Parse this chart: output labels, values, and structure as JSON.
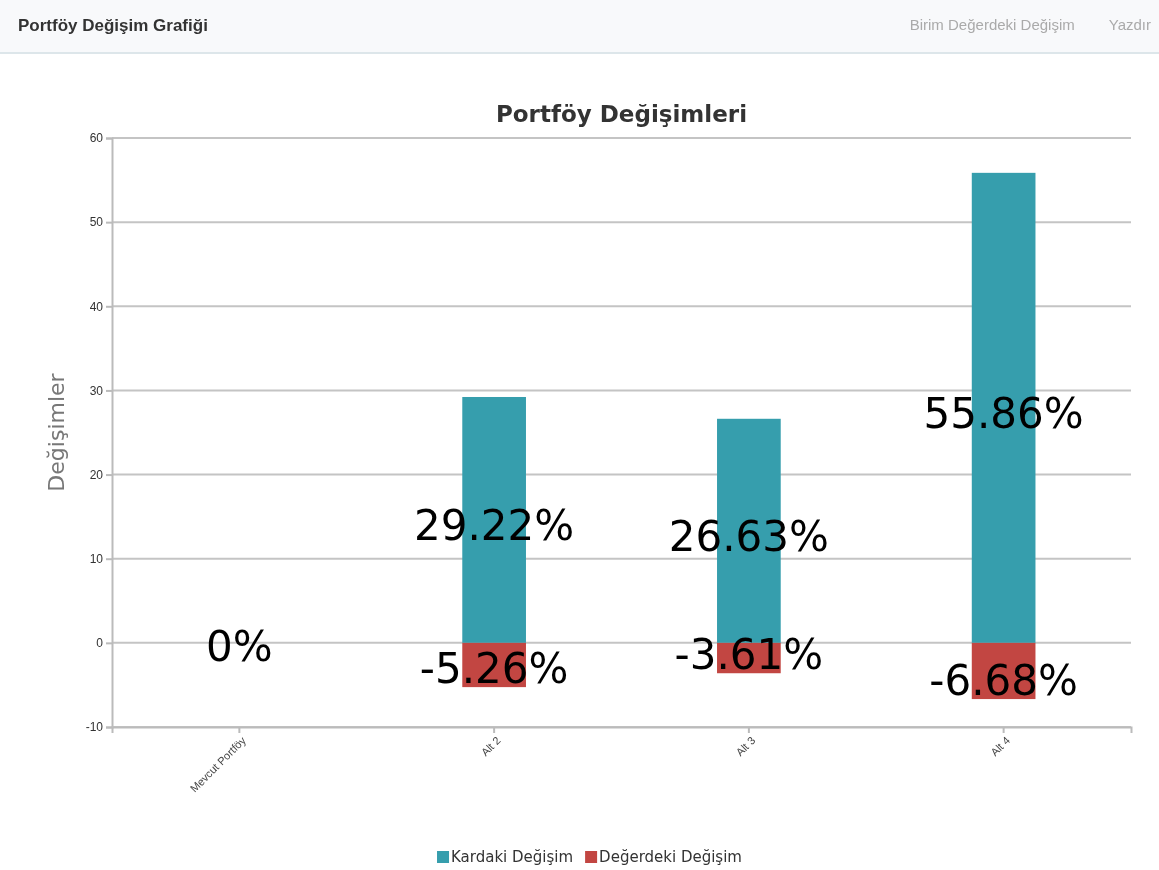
{
  "chart_data": {
    "type": "bar",
    "title": "Portföy Değişimleri",
    "ylabel": "Değişimler",
    "annotations": [
      "Portföy Değişim Grafiği",
      "Birim Değerdeki Değişim",
      "Yazdır"
    ],
    "categories": [
      "Mevcut Portföy",
      "Alt 2",
      "Alt 3",
      "Alt 4"
    ],
    "series": [
      {
        "name": "Kardaki Değişim",
        "color": "#369ead",
        "values": [
          0,
          29.22,
          26.63,
          55.86
        ],
        "value_labels": [
          "0%",
          "29.22%",
          "26.63%",
          "55.86%"
        ]
      },
      {
        "name": "Değerdeki Değişim",
        "color": "#c24642",
        "values": [
          0,
          -5.26,
          -3.61,
          -6.68
        ],
        "value_labels": [
          null,
          "-5.26%",
          "-3.61%",
          "-6.68%"
        ]
      }
    ],
    "stacked": true,
    "ylim": [
      -10,
      60
    ],
    "yticks": [
      -10,
      0,
      10,
      20,
      30,
      40,
      50,
      60
    ],
    "grid": "y",
    "legend": "bottom"
  }
}
